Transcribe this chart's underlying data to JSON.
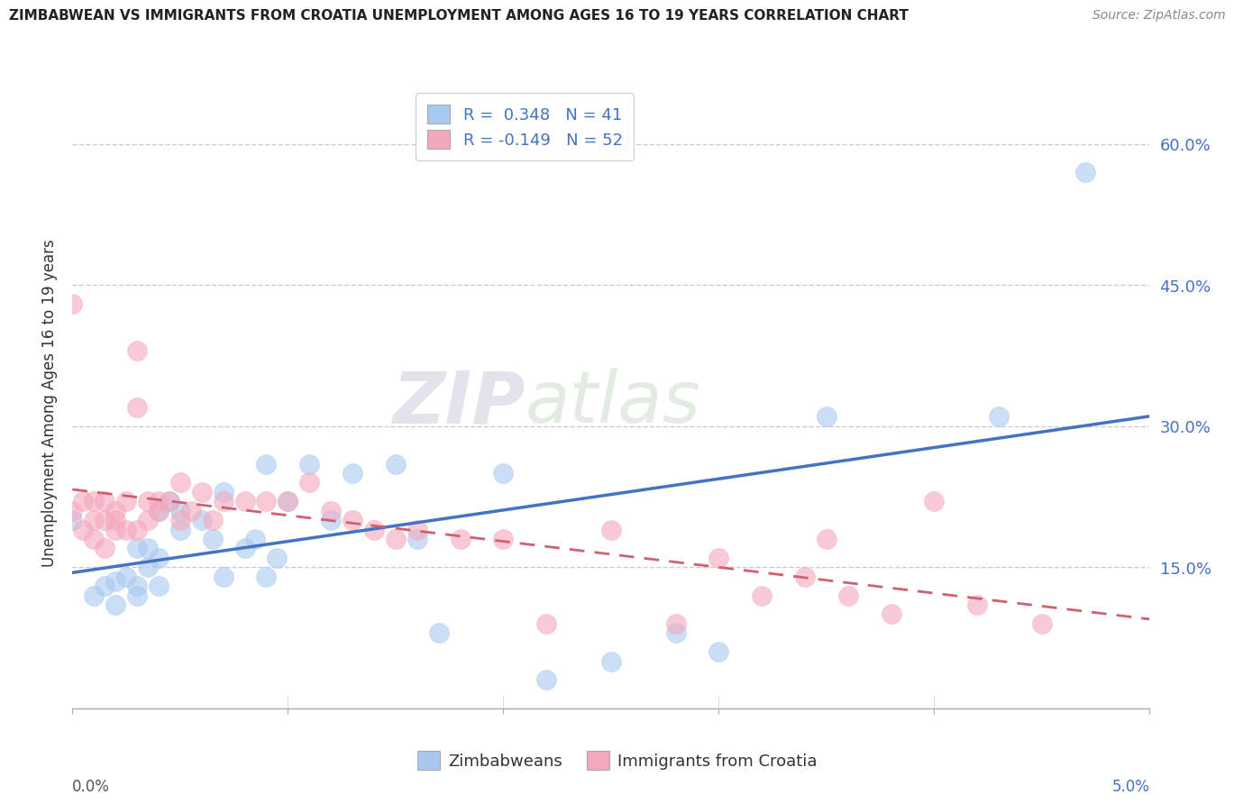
{
  "title": "ZIMBABWEAN VS IMMIGRANTS FROM CROATIA UNEMPLOYMENT AMONG AGES 16 TO 19 YEARS CORRELATION CHART",
  "source": "Source: ZipAtlas.com",
  "ylabel": "Unemployment Among Ages 16 to 19 years",
  "legend_label1": "Zimbabweans",
  "legend_label2": "Immigrants from Croatia",
  "legend_R1": "R =  0.348",
  "legend_N1": "N = 41",
  "legend_R2": "R = -0.149",
  "legend_N2": "N = 52",
  "color_blue": "#a8c8f0",
  "color_pink": "#f4a8bc",
  "color_blue_line": "#4472c4",
  "color_pink_line": "#d06070",
  "color_legend_R": "#4472c4",
  "background": "#ffffff",
  "watermark_zip": "ZIP",
  "watermark_atlas": "atlas",
  "x_range": [
    0.0,
    5.0
  ],
  "y_range": [
    0.0,
    65.0
  ],
  "yticks": [
    15,
    30,
    45,
    60
  ],
  "ytick_labels": [
    "15.0%",
    "30.0%",
    "45.0%",
    "60.0%"
  ],
  "xtick_left_label": "0.0%",
  "xtick_right_label": "5.0%",
  "zimbabwean_x": [
    0.0,
    0.1,
    0.15,
    0.2,
    0.2,
    0.25,
    0.3,
    0.3,
    0.3,
    0.35,
    0.35,
    0.4,
    0.4,
    0.4,
    0.45,
    0.5,
    0.5,
    0.6,
    0.65,
    0.7,
    0.7,
    0.8,
    0.85,
    0.9,
    0.9,
    0.95,
    1.0,
    1.1,
    1.2,
    1.3,
    1.5,
    1.6,
    1.7,
    2.0,
    2.2,
    2.5,
    2.8,
    3.0,
    3.5,
    4.3,
    4.7
  ],
  "zimbabwean_y": [
    20.0,
    12.0,
    13.0,
    11.0,
    13.5,
    14.0,
    12.0,
    13.0,
    17.0,
    15.0,
    17.0,
    13.0,
    16.0,
    21.0,
    22.0,
    19.0,
    21.0,
    20.0,
    18.0,
    14.0,
    23.0,
    17.0,
    18.0,
    14.0,
    26.0,
    16.0,
    22.0,
    26.0,
    20.0,
    25.0,
    26.0,
    18.0,
    8.0,
    25.0,
    3.0,
    5.0,
    8.0,
    6.0,
    31.0,
    31.0,
    57.0
  ],
  "croatia_x": [
    0.0,
    0.0,
    0.05,
    0.05,
    0.1,
    0.1,
    0.1,
    0.15,
    0.15,
    0.15,
    0.2,
    0.2,
    0.2,
    0.25,
    0.25,
    0.3,
    0.3,
    0.3,
    0.35,
    0.35,
    0.4,
    0.4,
    0.45,
    0.5,
    0.5,
    0.55,
    0.6,
    0.65,
    0.7,
    0.8,
    0.9,
    1.0,
    1.1,
    1.2,
    1.3,
    1.4,
    1.5,
    1.6,
    1.8,
    2.0,
    2.2,
    2.5,
    2.8,
    3.0,
    3.2,
    3.4,
    3.5,
    3.6,
    3.8,
    4.0,
    4.2,
    4.5
  ],
  "croatia_y": [
    43.0,
    21.0,
    22.0,
    19.0,
    20.0,
    22.0,
    18.0,
    20.0,
    22.0,
    17.0,
    20.0,
    19.0,
    21.0,
    19.0,
    22.0,
    32.0,
    38.0,
    19.0,
    22.0,
    20.0,
    21.0,
    22.0,
    22.0,
    20.0,
    24.0,
    21.0,
    23.0,
    20.0,
    22.0,
    22.0,
    22.0,
    22.0,
    24.0,
    21.0,
    20.0,
    19.0,
    18.0,
    19.0,
    18.0,
    18.0,
    9.0,
    19.0,
    9.0,
    16.0,
    12.0,
    14.0,
    18.0,
    12.0,
    10.0,
    22.0,
    11.0,
    9.0
  ]
}
